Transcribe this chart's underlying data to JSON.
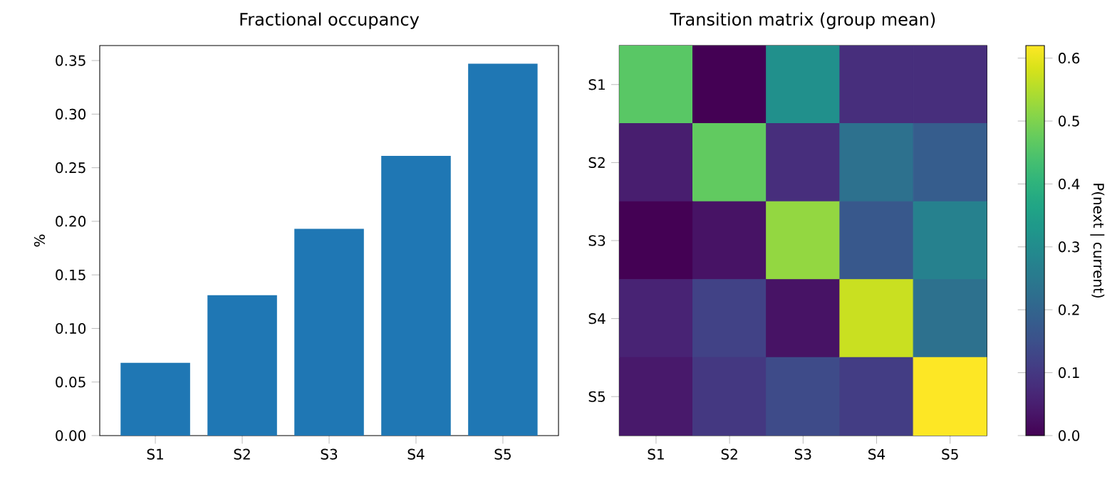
{
  "chart_data": [
    {
      "type": "bar",
      "title": "Fractional occupancy",
      "ylabel": "%",
      "categories": [
        "S1",
        "S2",
        "S3",
        "S4",
        "S5"
      ],
      "values": [
        0.068,
        0.131,
        0.193,
        0.261,
        0.347
      ],
      "color": "#1f77b4",
      "ylim": [
        0,
        0.364
      ],
      "yticks": [
        {
          "value": 0,
          "label": "0.00"
        },
        {
          "value": 0.05,
          "label": "0.05"
        },
        {
          "value": 0.1,
          "label": "0.10"
        },
        {
          "value": 0.15,
          "label": "0.15"
        },
        {
          "value": 0.2,
          "label": "0.20"
        },
        {
          "value": 0.25,
          "label": "0.25"
        },
        {
          "value": 0.3,
          "label": "0.30"
        },
        {
          "value": 0.35,
          "label": "0.35"
        }
      ]
    },
    {
      "type": "heatmap",
      "title": "Transition matrix (group mean)",
      "clabel": "P(next | current)",
      "categories": [
        "S1",
        "S2",
        "S3",
        "S4",
        "S5"
      ],
      "y_categories": [
        "S1",
        "S2",
        "S3",
        "S4",
        "S5"
      ],
      "cells": [
        [
          0.46,
          0.0,
          0.31,
          0.08,
          0.08
        ],
        [
          0.05,
          0.47,
          0.08,
          0.23,
          0.18
        ],
        [
          0.0,
          0.03,
          0.52,
          0.17,
          0.27
        ],
        [
          0.06,
          0.12,
          0.03,
          0.57,
          0.23
        ],
        [
          0.04,
          0.1,
          0.14,
          0.11,
          0.62
        ]
      ],
      "clim": [
        0,
        0.62
      ],
      "cticks": [
        {
          "value": 0,
          "label": "0.0"
        },
        {
          "value": 0.1,
          "label": "0.1"
        },
        {
          "value": 0.2,
          "label": "0.2"
        },
        {
          "value": 0.3,
          "label": "0.3"
        },
        {
          "value": 0.4,
          "label": "0.4"
        },
        {
          "value": 0.5,
          "label": "0.5"
        },
        {
          "value": 0.6,
          "label": "0.6"
        }
      ]
    }
  ]
}
